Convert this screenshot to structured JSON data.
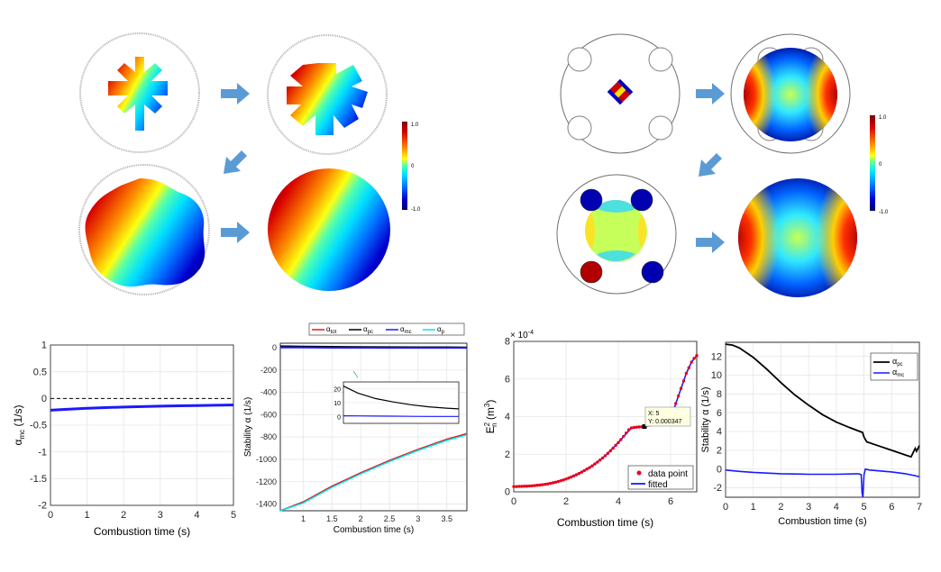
{
  "colorbar_labels": {
    "max": "1.0",
    "mid": "0",
    "min": "-1.0"
  },
  "colors": {
    "arrow": "#5b9bd5",
    "alpha_tot": "#e41a1c",
    "alpha_pc": "#000000",
    "alpha_mc": "#1a1aff",
    "alpha_p": "#00e5ee",
    "data_point": "#e8001c",
    "fitted": "#1a1aff"
  },
  "icons": {
    "arrow": "right-arrow-icon",
    "arrow_down_left": "down-left-arrow-icon"
  },
  "chart_data": [
    {
      "id": "chart1",
      "type": "line",
      "xlabel": "Combustion time (s)",
      "ylabel_main": "α",
      "ylabel_sub": "mc",
      "ylabel_unit": " (1/s)",
      "xlim": [
        0,
        5
      ],
      "ylim": [
        -2,
        1
      ],
      "xticks": [
        "0",
        "1",
        "2",
        "3",
        "4",
        "5"
      ],
      "yticks": [
        "-2",
        "-1.5",
        "-1",
        "-0.5",
        "0",
        "0.5",
        "1"
      ],
      "grid": true,
      "reference_line": {
        "y": 0,
        "style": "dashed"
      },
      "series": [
        {
          "x": [
            0,
            0.5,
            1,
            1.5,
            2,
            2.5,
            3,
            3.5,
            4,
            4.5,
            5
          ],
          "y": [
            -0.22,
            -0.2,
            -0.185,
            -0.172,
            -0.162,
            -0.153,
            -0.145,
            -0.138,
            -0.132,
            -0.127,
            -0.122
          ]
        }
      ]
    },
    {
      "id": "chart2",
      "type": "line",
      "xlabel": "Combustion time (s)",
      "ylabel": "Stability α (1/s)",
      "xlim": [
        0.6,
        3.85
      ],
      "ylim": [
        -1460,
        40
      ],
      "xticks": [
        "1",
        "1.5",
        "2",
        "2.5",
        "3",
        "3.5"
      ],
      "yticks": [
        "-1400",
        "-1200",
        "-1000",
        "-800",
        "-600",
        "-400",
        "-200",
        "0"
      ],
      "grid": true,
      "legend_position": "top",
      "series": [
        {
          "name": "α",
          "sub": "tot",
          "x": [
            0.6,
            1,
            1.5,
            2,
            2.5,
            3,
            3.5,
            3.85
          ],
          "y": [
            -1490,
            -1380,
            -1240,
            -1120,
            -1010,
            -910,
            -820,
            -770
          ]
        },
        {
          "name": "α",
          "sub": "pc",
          "x": [
            0.6,
            1,
            1.5,
            2,
            2.5,
            3,
            3.5,
            3.85
          ],
          "y": [
            15,
            12,
            10,
            8,
            7,
            6,
            5,
            4
          ]
        },
        {
          "name": "α",
          "sub": "mc",
          "x": [
            0.6,
            1,
            1.5,
            2,
            2.5,
            3,
            3.5,
            3.85
          ],
          "y": [
            2,
            1,
            0,
            0,
            -1,
            -1,
            -1,
            -1
          ]
        },
        {
          "name": "α",
          "sub": "p",
          "x": [
            0.6,
            1,
            1.5,
            2,
            2.5,
            3,
            3.5,
            3.85
          ],
          "y": [
            -1500,
            -1390,
            -1250,
            -1130,
            -1020,
            -920,
            -830,
            -780
          ]
        }
      ],
      "inset": {
        "xlim": [
          0.6,
          3.85
        ],
        "ylim": [
          -5,
          25
        ],
        "yticks": [
          "0",
          "10",
          "20"
        ],
        "pc": [
          22,
          17,
          13,
          10.5,
          8.5,
          7,
          6,
          5.5
        ],
        "mc": [
          0.5,
          0.4,
          0.3,
          0.2,
          0.1,
          0,
          0,
          0
        ]
      }
    },
    {
      "id": "chart3",
      "type": "scatter",
      "xlabel": "Combustion time (s)",
      "ylabel_main": "E",
      "ylabel_sup": "2",
      "ylabel_sub": "n",
      "ylabel_unit": " (m",
      "ylabel_unit_sup": "3",
      "ylabel_unit_end": ")",
      "exponent_label": "× 10",
      "exponent_sup": "-4",
      "xlim": [
        0,
        7
      ],
      "ylim": [
        0,
        8
      ],
      "xticks": [
        "0",
        "2",
        "4",
        "6"
      ],
      "yticks": [
        "0",
        "2",
        "4",
        "6",
        "8"
      ],
      "grid": true,
      "legend": {
        "position": "bottom-right",
        "data_point": "data point",
        "fitted": "fitted"
      },
      "datatip": {
        "x_text": "X: 5",
        "y_text": "Y: 0.000347",
        "x": 5,
        "y": 3.47
      },
      "points": {
        "x": [
          0,
          0.1,
          0.2,
          0.3,
          0.4,
          0.5,
          0.6,
          0.7,
          0.8,
          0.9,
          1,
          1.1,
          1.2,
          1.3,
          1.4,
          1.5,
          1.6,
          1.7,
          1.8,
          1.9,
          2,
          2.1,
          2.2,
          2.3,
          2.4,
          2.5,
          2.6,
          2.7,
          2.8,
          2.9,
          3,
          3.1,
          3.2,
          3.3,
          3.4,
          3.5,
          3.6,
          3.7,
          3.8,
          3.9,
          4,
          4.1,
          4.2,
          4.3,
          4.4,
          4.5,
          4.6,
          4.7,
          4.8,
          4.9,
          5,
          5.2,
          5.4,
          5.6,
          5.8,
          6,
          6.1,
          6.2,
          6.3,
          6.4,
          6.5,
          6.6,
          6.7,
          6.8,
          6.9,
          7
        ],
        "y": [
          0.28,
          0.28,
          0.29,
          0.29,
          0.3,
          0.3,
          0.31,
          0.32,
          0.33,
          0.35,
          0.36,
          0.38,
          0.4,
          0.42,
          0.45,
          0.48,
          0.51,
          0.55,
          0.59,
          0.63,
          0.68,
          0.73,
          0.79,
          0.85,
          0.91,
          0.98,
          1.05,
          1.13,
          1.21,
          1.29,
          1.38,
          1.48,
          1.58,
          1.69,
          1.8,
          1.92,
          2.05,
          2.18,
          2.32,
          2.47,
          2.62,
          2.78,
          2.95,
          3.13,
          3.3,
          3.4,
          3.42,
          3.44,
          3.45,
          3.46,
          3.47,
          3.55,
          3.6,
          3.65,
          3.72,
          3.85,
          4.3,
          4.7,
          5.1,
          5.5,
          5.9,
          6.3,
          6.6,
          6.9,
          7.1,
          7.25
        ]
      },
      "fitted": {
        "x": [
          0,
          0.5,
          1,
          1.5,
          2,
          2.5,
          3,
          3.5,
          4,
          4.5,
          4.85,
          4.95,
          5,
          5.4,
          5.8,
          6,
          6.2,
          6.4,
          6.6,
          6.8,
          7
        ],
        "y": [
          0.28,
          0.3,
          0.36,
          0.48,
          0.68,
          0.98,
          1.38,
          1.92,
          2.62,
          3.4,
          3.45,
          3.46,
          3.47,
          3.6,
          3.72,
          3.85,
          4.7,
          5.5,
          6.3,
          6.9,
          7.25
        ]
      }
    },
    {
      "id": "chart4",
      "type": "line",
      "xlabel": "Combustion time (s)",
      "ylabel": "Stability α (1/s)",
      "xlim": [
        0,
        7
      ],
      "ylim": [
        -3,
        13.5
      ],
      "xticks": [
        "0",
        "1",
        "2",
        "3",
        "4",
        "5",
        "6",
        "7"
      ],
      "yticks": [
        "-2",
        "0",
        "2",
        "4",
        "6",
        "8",
        "10",
        "12"
      ],
      "grid": true,
      "legend_position": "top-right",
      "series": [
        {
          "name": "α",
          "sub": "pc",
          "x": [
            0,
            0.25,
            0.5,
            1,
            1.5,
            2,
            2.5,
            3,
            3.5,
            4,
            4.5,
            4.95,
            5.0,
            5.1,
            5.5,
            6,
            6.5,
            6.7,
            6.85,
            6.9,
            7
          ],
          "y": [
            13.3,
            13.2,
            12.9,
            11.9,
            10.6,
            9.2,
            7.9,
            6.8,
            5.8,
            5,
            4.4,
            3.9,
            3.4,
            2.9,
            2.5,
            2.0,
            1.5,
            1.3,
            2.2,
            1.9,
            2.5
          ]
        },
        {
          "name": "α",
          "sub": "mc",
          "x": [
            0,
            0.5,
            1,
            2,
            3,
            4,
            4.8,
            4.9,
            4.93,
            4.96,
            5.0,
            5.05,
            5.2,
            6,
            6.5,
            7
          ],
          "y": [
            -0.1,
            -0.25,
            -0.35,
            -0.5,
            -0.55,
            -0.55,
            -0.5,
            -0.6,
            -2.5,
            -3.0,
            -0.6,
            0.0,
            -0.1,
            -0.3,
            -0.5,
            -0.8
          ]
        }
      ]
    }
  ]
}
